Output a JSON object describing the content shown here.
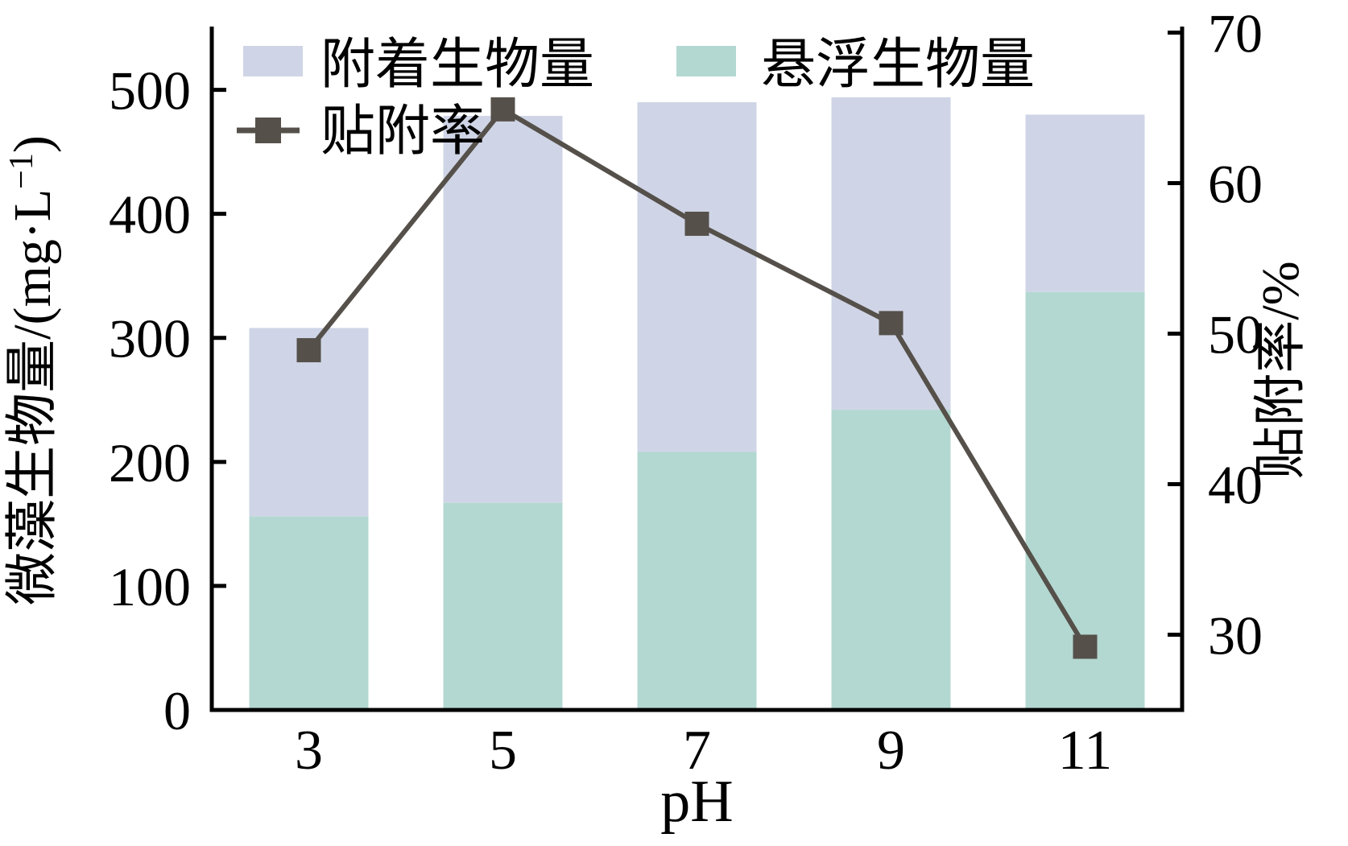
{
  "chart_data": {
    "type": "bar",
    "stacked": true,
    "grid": false,
    "legend_position": "top-inside",
    "categories": [
      "3",
      "5",
      "7",
      "9",
      "11"
    ],
    "xlabel": "pH",
    "left_axis": {
      "label": "微藻生物量/(mg·L⁻¹)",
      "min": 0,
      "max": 551,
      "ticks": [
        0,
        100,
        200,
        300,
        400,
        500
      ]
    },
    "right_axis": {
      "label": "贴附率/%",
      "min": 25,
      "max": 70.4,
      "ticks": [
        30,
        40,
        50,
        60,
        70
      ]
    },
    "series": [
      {
        "name": "悬浮生物量",
        "kind": "bar-bottom",
        "axis": "left",
        "color": "#b3d8d1",
        "values": [
          156,
          167,
          208,
          242,
          337
        ]
      },
      {
        "name": "附着生物量",
        "kind": "bar-top",
        "axis": "left",
        "color": "#cfd5e6",
        "values": [
          152,
          312,
          282,
          252,
          143
        ]
      },
      {
        "name": "贴附率",
        "kind": "line",
        "axis": "right",
        "color": "#55504a",
        "values": [
          48.9,
          64.9,
          57.3,
          50.7,
          29.2
        ]
      }
    ],
    "bar_totals": [
      308,
      479,
      490,
      494,
      480
    ]
  },
  "colors": {
    "background": "#ffffff",
    "axis": "#000000",
    "attached_bar": "#cfd5e6",
    "suspended_bar": "#b3d8d1",
    "line": "#55504a"
  }
}
